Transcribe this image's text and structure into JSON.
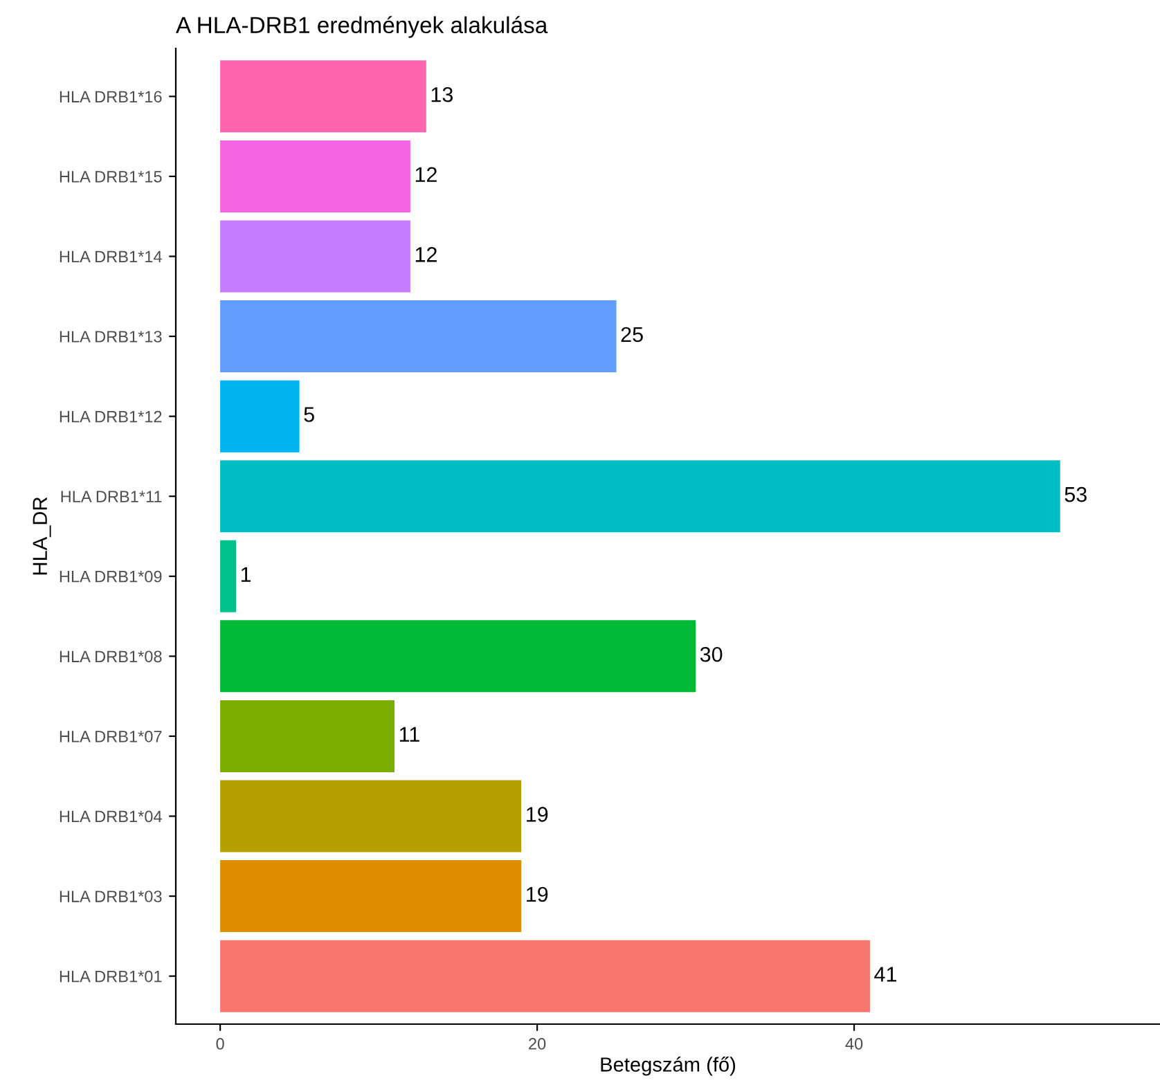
{
  "chart_data": {
    "type": "bar",
    "orientation": "horizontal",
    "title": "A HLA-DRB1 eredmények alakulása",
    "xlabel": "Betegszám (fő)",
    "ylabel": "HLA_DR",
    "categories": [
      "HLA DRB1*16",
      "HLA DRB1*15",
      "HLA DRB1*14",
      "HLA DRB1*13",
      "HLA DRB1*12",
      "HLA DRB1*11",
      "HLA DRB1*09",
      "HLA DRB1*08",
      "HLA DRB1*07",
      "HLA DRB1*04",
      "HLA DRB1*03",
      "HLA DRB1*01"
    ],
    "values": [
      13,
      12,
      12,
      25,
      5,
      53,
      1,
      30,
      11,
      19,
      19,
      41
    ],
    "colors": [
      "#ff64b0",
      "#f564e3",
      "#c77cff",
      "#619cff",
      "#00b4f0",
      "#00bfc4",
      "#00c08b",
      "#00ba38",
      "#7cae00",
      "#b79f00",
      "#de8c00",
      "#f8766d"
    ],
    "xlim": [
      -2.8,
      59.3
    ],
    "xticks": [
      0,
      20,
      40
    ],
    "grid": false,
    "legend": false,
    "data_labels": true
  }
}
